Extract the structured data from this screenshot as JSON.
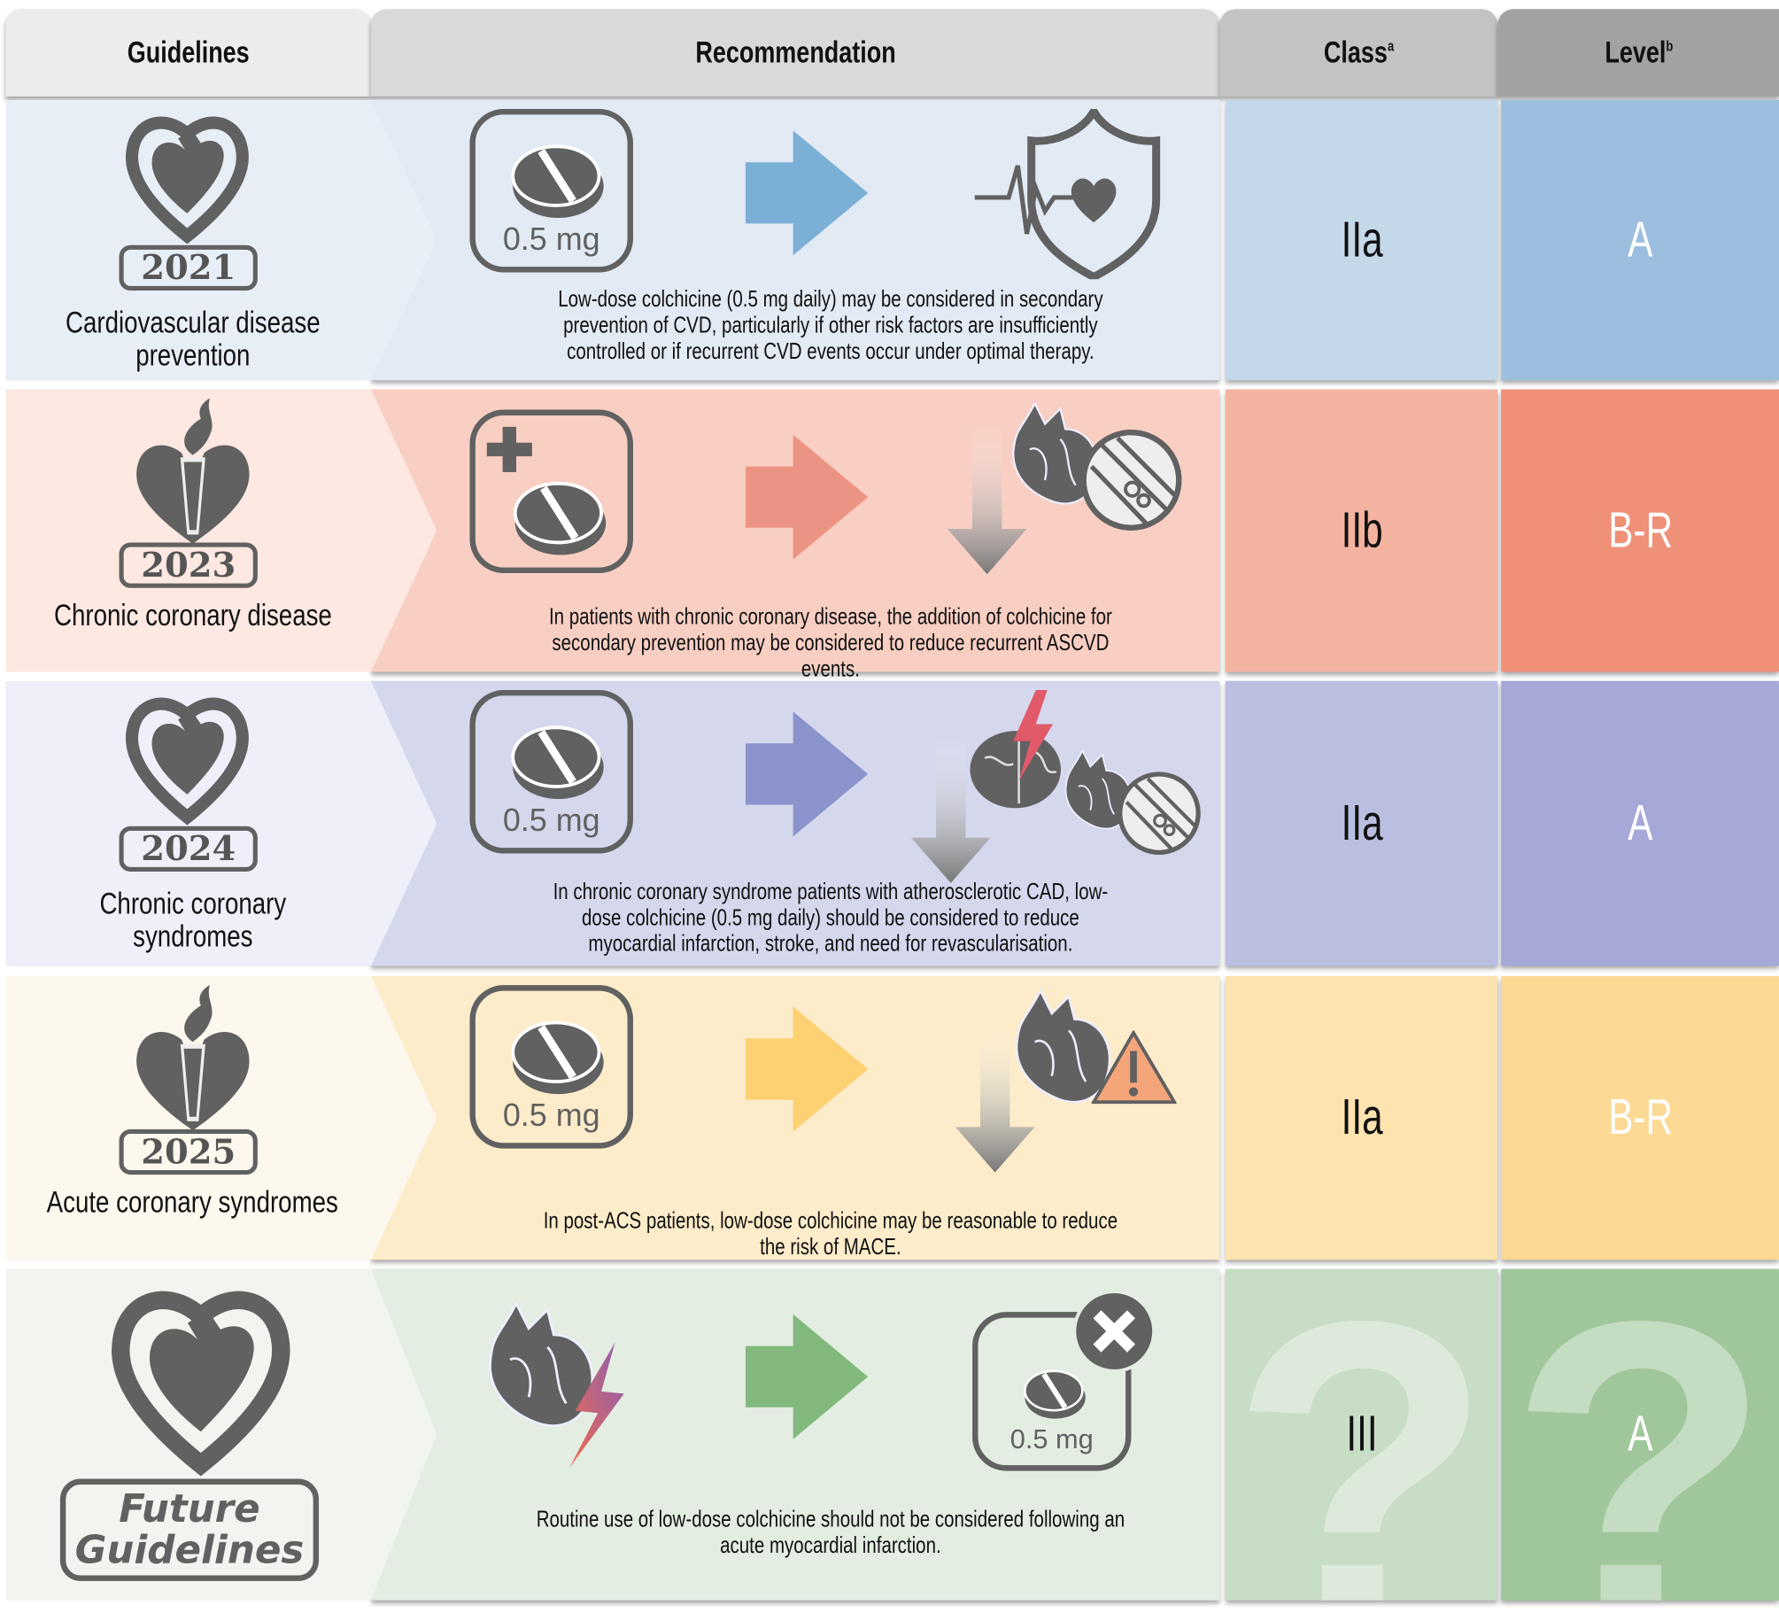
{
  "header": {
    "guidelines": "Guidelines",
    "recommendation": "Recommendation",
    "class": "Class",
    "class_sup": "a",
    "level": "Level",
    "level_sup": "b"
  },
  "rows": [
    {
      "year": "2021",
      "guideline": "Cardiovascular disease prevention",
      "dose": "0.5 mg",
      "text": "Low-dose colchicine (0.5 mg daily) may be considered in secondary prevention of CVD, particularly if other risk factors are insufficiently controlled or if recurrent CVD events occur under optimal therapy.",
      "class": "IIa",
      "level": "A",
      "icon": "heart-logo-icon",
      "outcome_icon": "shield-heart-icon",
      "colors": {
        "guideline": "#e8eef6",
        "rec": "#e2eaf4",
        "class": "#c5d8ea",
        "level": "#9dbfdf",
        "arrow": "#7bafd6"
      }
    },
    {
      "year": "2023",
      "guideline": "Chronic coronary disease",
      "dose": "",
      "text": "In patients with chronic coronary disease, the addition of colchicine for secondary prevention may be considered to reduce recurrent ASCVD events.",
      "class": "IIb",
      "level": "B-R",
      "icon": "torch-heart-icon",
      "outcome_icon": "heart-artery-down-icon",
      "colors": {
        "guideline": "#fde8e2",
        "rec": "#f9cfc3",
        "class": "#f4b3a0",
        "level": "#ef9078",
        "arrow": "#ec9483"
      }
    },
    {
      "year": "2024",
      "guideline": "Chronic coronary syndromes",
      "dose": "0.5 mg",
      "text": "In chronic coronary syndrome patients with atherosclerotic CAD, low-dose colchicine (0.5 mg daily) should be considered to reduce myocardial infarction, stroke, and need for revascularisation.",
      "class": "IIa",
      "level": "A",
      "icon": "heart-logo-icon",
      "outcome_icon": "brain-heart-down-icon",
      "colors": {
        "guideline": "#eeeff8",
        "rec": "#d5d7ed",
        "class": "#babfe2",
        "level": "#a6a9d8",
        "arrow": "#8a93cb"
      }
    },
    {
      "year": "2025",
      "guideline": "Acute coronary syndromes",
      "dose": "0.5 mg",
      "text": "In post-ACS patients, low-dose colchicine may be reasonable to reduce the risk of MACE.",
      "class": "IIa",
      "level": "B-R",
      "icon": "torch-heart-icon",
      "outcome_icon": "heart-warning-down-icon",
      "colors": {
        "guideline": "#fdf8ee",
        "rec": "#fdecca",
        "class": "#fde3b0",
        "level": "#fcd995",
        "arrow": "#fdd072"
      }
    },
    {
      "year": "Future Guidelines",
      "guideline": "",
      "dose": "0.5 mg",
      "text": "Routine use of low-dose colchicine should not be considered following an acute myocardial infarction.",
      "class": "III",
      "level": "A",
      "icon": "heart-logo-icon",
      "outcome_icon": "no-pill-icon",
      "colors": {
        "guideline": "#f1f4ef",
        "rec": "#e3ede2",
        "class": "#c8ddc5",
        "level": "#a0c79b",
        "arrow": "#81b97c"
      }
    }
  ]
}
